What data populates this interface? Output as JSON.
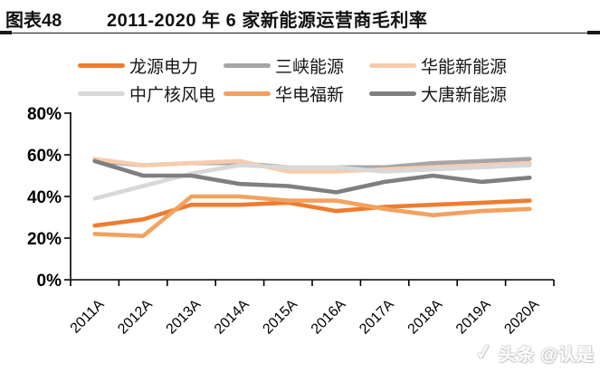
{
  "figure": {
    "label": "图表48",
    "title": "2011-2020 年 6 家新能源运营商毛利率"
  },
  "watermark": {
    "check": "✓",
    "text": "头条 @认是"
  },
  "chart_data": {
    "type": "line",
    "title": "2011-2020 年 6 家新能源运营商毛利率",
    "categories": [
      "2011A",
      "2012A",
      "2013A",
      "2014A",
      "2015A",
      "2016A",
      "2017A",
      "2018A",
      "2019A",
      "2020A"
    ],
    "xlabel": "",
    "ylabel": "",
    "ylim": [
      0,
      80
    ],
    "yticks": [
      0,
      20,
      40,
      60,
      80
    ],
    "ytick_suffix": "%",
    "grid": false,
    "legend_position": "top",
    "axis_color": "#000000",
    "series": [
      {
        "name": "龙源电力",
        "color": "#ED7D31",
        "values": [
          26,
          29,
          36,
          36,
          37,
          33,
          35,
          36,
          37,
          38
        ]
      },
      {
        "name": "三峡能源",
        "color": "#A6A6A6",
        "values": [
          57,
          55,
          56,
          56,
          54,
          54,
          54,
          56,
          57,
          58
        ]
      },
      {
        "name": "华能新能源",
        "color": "#F8CBAD",
        "values": [
          58,
          55,
          56,
          57,
          52,
          52,
          53,
          54,
          55,
          56
        ]
      },
      {
        "name": "中广核风电",
        "color": "#D8D8D8",
        "values": [
          39,
          45,
          51,
          55,
          54,
          54,
          52,
          53,
          54,
          55
        ]
      },
      {
        "name": "华电福新",
        "color": "#F2A25F",
        "values": [
          22,
          21,
          40,
          40,
          38,
          38,
          34,
          31,
          33,
          34
        ]
      },
      {
        "name": "大唐新能源",
        "color": "#7F7F7F",
        "values": [
          57,
          50,
          50,
          46,
          45,
          42,
          47,
          50,
          47,
          49
        ]
      }
    ]
  }
}
